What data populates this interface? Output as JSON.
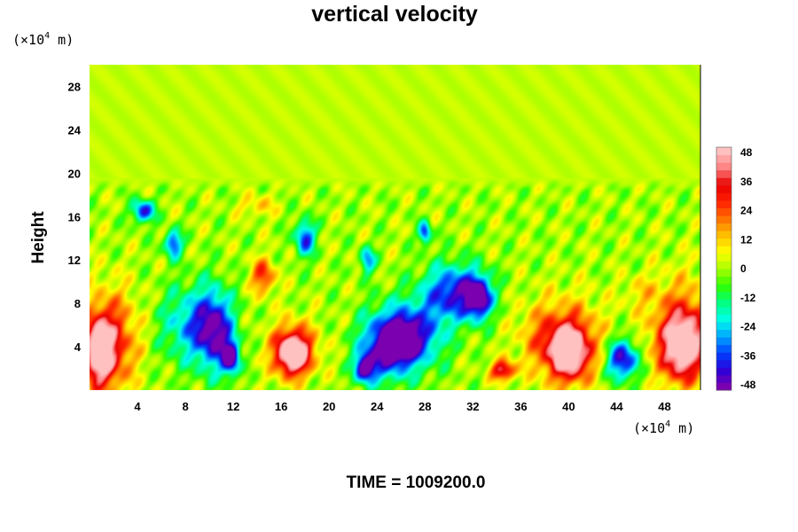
{
  "chart_data": {
    "type": "heatmap",
    "title": "vertical velocity",
    "xlabel": "",
    "ylabel": "Height",
    "x_unit": "(×10⁴ m)",
    "y_unit": "(×10⁴ m)",
    "x_unit_base": "(×10",
    "x_unit_exp": "4",
    "x_unit_tail": " m)",
    "y_unit_base": "(×10",
    "y_unit_exp": "4",
    "y_unit_tail": " m)",
    "xlim": [
      0,
      51
    ],
    "ylim": [
      0,
      30
    ],
    "x_ticks": [
      4,
      8,
      12,
      16,
      20,
      24,
      28,
      32,
      36,
      40,
      44,
      48
    ],
    "y_ticks": [
      4,
      8,
      12,
      16,
      20,
      24,
      28
    ],
    "colorbar": {
      "range": [
        -48,
        48
      ],
      "ticks": [
        48,
        36,
        24,
        12,
        0,
        -12,
        -24,
        -36,
        -48
      ],
      "colors": [
        "#7a00b0",
        "#2a00d8",
        "#0040ff",
        "#00a8ff",
        "#00ffe8",
        "#00ff80",
        "#30ff00",
        "#a8ff00",
        "#ffff00",
        "#ffc000",
        "#ff7000",
        "#ff2000",
        "#e80000",
        "#ff8080",
        "#ffc0c0"
      ]
    },
    "features": [
      {
        "x": 0.8,
        "y": 3.5,
        "w": 1.2,
        "h": 3.0,
        "v": 48
      },
      {
        "x": 1.8,
        "y": 4.5,
        "w": 2.2,
        "h": 4.5,
        "v": 30
      },
      {
        "x": 4.5,
        "y": 16.5,
        "w": 0.9,
        "h": 1.0,
        "v": -40
      },
      {
        "x": 7.0,
        "y": 13.5,
        "w": 0.7,
        "h": 1.2,
        "v": -38
      },
      {
        "x": 8.5,
        "y": 6.0,
        "w": 2.5,
        "h": 3.5,
        "v": -26
      },
      {
        "x": 10.5,
        "y": 5.5,
        "w": 1.5,
        "h": 3.5,
        "v": -40
      },
      {
        "x": 11.8,
        "y": 3.0,
        "w": 0.7,
        "h": 1.5,
        "v": -48
      },
      {
        "x": 14.5,
        "y": 10.5,
        "w": 1.0,
        "h": 1.6,
        "v": 28
      },
      {
        "x": 17.0,
        "y": 3.3,
        "w": 1.3,
        "h": 1.8,
        "v": 48
      },
      {
        "x": 17.0,
        "y": 3.8,
        "w": 2.0,
        "h": 2.5,
        "v": 26
      },
      {
        "x": 18.0,
        "y": 14.0,
        "w": 0.8,
        "h": 1.6,
        "v": -38
      },
      {
        "x": 14.0,
        "y": 17.0,
        "w": 1.5,
        "h": 1.0,
        "v": 12
      },
      {
        "x": 23.2,
        "y": 12.0,
        "w": 0.6,
        "h": 1.2,
        "v": -30
      },
      {
        "x": 28.0,
        "y": 14.5,
        "w": 0.5,
        "h": 1.0,
        "v": -38
      },
      {
        "x": 24.5,
        "y": 4.0,
        "w": 2.0,
        "h": 3.0,
        "v": -40
      },
      {
        "x": 27.0,
        "y": 5.0,
        "w": 2.5,
        "h": 3.0,
        "v": -40
      },
      {
        "x": 30.5,
        "y": 9.0,
        "w": 2.5,
        "h": 2.5,
        "v": -42
      },
      {
        "x": 32.5,
        "y": 8.5,
        "w": 1.0,
        "h": 1.8,
        "v": -48
      },
      {
        "x": 26.0,
        "y": 4.5,
        "w": 1.0,
        "h": 1.5,
        "v": -48
      },
      {
        "x": 23.0,
        "y": 2.0,
        "w": 0.8,
        "h": 1.2,
        "v": -48
      },
      {
        "x": 34.5,
        "y": 1.8,
        "w": 1.0,
        "h": 0.9,
        "v": 40
      },
      {
        "x": 40.0,
        "y": 3.5,
        "w": 1.6,
        "h": 2.4,
        "v": 48
      },
      {
        "x": 40.0,
        "y": 4.5,
        "w": 2.8,
        "h": 3.8,
        "v": 24
      },
      {
        "x": 44.5,
        "y": 2.8,
        "w": 1.3,
        "h": 1.8,
        "v": -46
      },
      {
        "x": 49.5,
        "y": 4.0,
        "w": 1.6,
        "h": 2.8,
        "v": 48
      },
      {
        "x": 49.5,
        "y": 5.5,
        "w": 2.8,
        "h": 4.5,
        "v": 26
      },
      {
        "x": 37.5,
        "y": 5.0,
        "w": 2.0,
        "h": 3.0,
        "v": 10
      },
      {
        "x": 46.0,
        "y": 9.0,
        "w": 1.5,
        "h": 1.5,
        "v": 8
      }
    ],
    "turbulent_layer_top": 19.5,
    "upper_value": 2
  },
  "footer": {
    "time_label": "TIME = 1009200.0"
  }
}
